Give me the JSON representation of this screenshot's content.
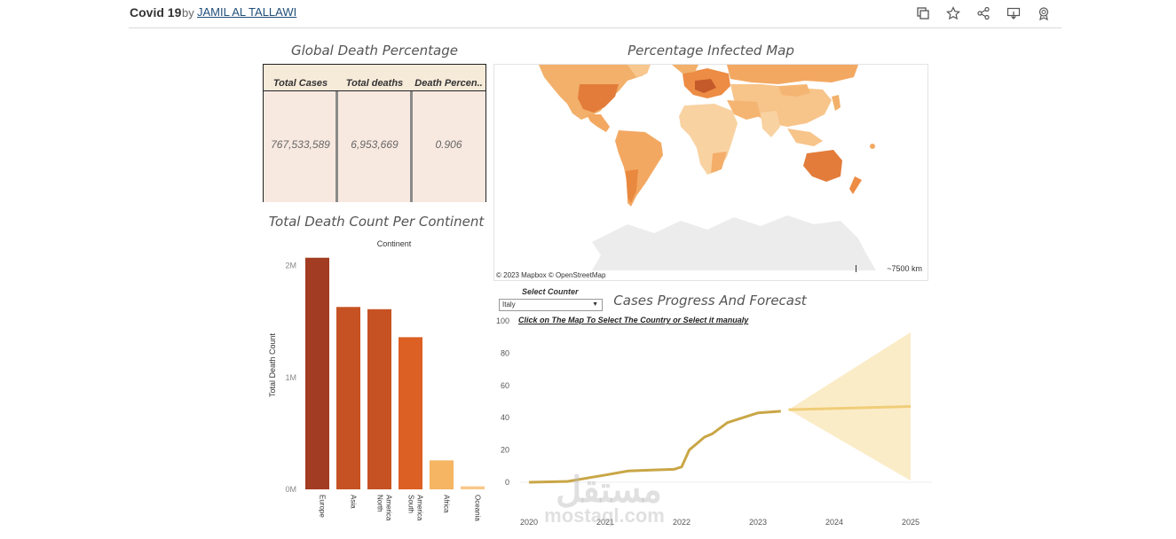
{
  "header": {
    "title": "Covid 19",
    "by": "by",
    "author": "JAMIL AL TALLAWI"
  },
  "toolbar": {
    "icons": [
      "copy-icon",
      "star-icon",
      "share-icon",
      "download-icon",
      "badge-icon"
    ]
  },
  "kpi_table": {
    "title": "Global Death Percentage",
    "headers": [
      "Total Cases",
      "Total deaths",
      "Death Percen.."
    ],
    "values": [
      "767,533,589",
      "6,953,669",
      "0.906"
    ]
  },
  "map": {
    "title": "Percentage Infected Map",
    "attribution": "© 2023 Mapbox  © OpenStreetMap",
    "scale": "~7500 km"
  },
  "continent_chart": {
    "title": "Total Death Count Per Continent",
    "header": "Continent",
    "ylabel": "Total Death Count",
    "ticks": [
      "2M",
      "1M",
      "0M"
    ]
  },
  "forecast": {
    "title": "Cases Progress And Forecast",
    "select_label": "Select Counter",
    "selected": "Italy",
    "hint": "Click on The Map To Select The Country or Select it manualy"
  },
  "watermark": {
    "arabic": "مستقل",
    "latin": "mostaql.com"
  },
  "colors": {
    "europe": "#a23c22",
    "mid": "#c65223",
    "south_america": "#dc5f24",
    "africa": "#f5b563",
    "oceania": "#f8c888",
    "actual_line": "#c9a646",
    "forecast_line": "#f0cd78",
    "forecast_band": "#fbecc8"
  },
  "chart_data": [
    {
      "type": "bar",
      "title": "Total Death Count Per Continent",
      "xlabel": "Continent",
      "ylabel": "Total Death Count",
      "categories": [
        "Europe",
        "Asia",
        "North America",
        "South America",
        "Africa",
        "Oceania"
      ],
      "values": [
        2070000,
        1630000,
        1610000,
        1360000,
        259000,
        27000
      ],
      "ylim": [
        0,
        2000000
      ],
      "yticks": [
        0,
        1000000,
        2000000
      ]
    },
    {
      "type": "line",
      "title": "Cases Progress And Forecast",
      "xticks": [
        "2020",
        "2021",
        "2022",
        "2023",
        "2024",
        "2025"
      ],
      "yticks": [
        0,
        20,
        40,
        60,
        80,
        100
      ],
      "ylim": [
        0,
        100
      ],
      "xlim": [
        2020,
        2025
      ],
      "series": [
        {
          "x": [
            2020,
            2020.5,
            2021,
            2021.3,
            2021.6,
            2021.9,
            2022,
            2022.1,
            2022.3,
            2022.4,
            2022.6,
            2022.8,
            2023,
            2023.3
          ],
          "y": [
            0,
            0.5,
            4.5,
            7,
            7.5,
            8,
            9.5,
            20,
            28,
            30,
            37,
            40,
            43,
            44
          ]
        },
        {
          "x": [
            2023.4,
            2025
          ],
          "y": [
            45,
            47
          ],
          "upper": [
            45,
            93
          ],
          "lower": [
            45,
            1
          ]
        }
      ]
    }
  ]
}
